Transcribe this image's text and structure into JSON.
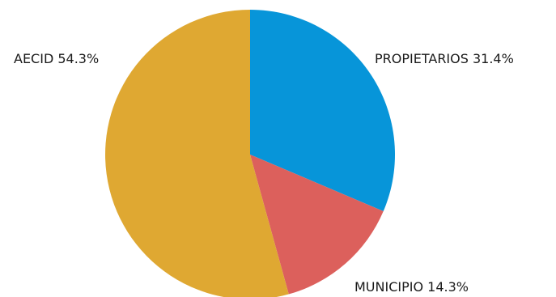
{
  "chart_data": {
    "type": "pie",
    "slices": [
      {
        "label": "PROPIETARIOS",
        "value": 31.4,
        "display": "PROPIETARIOS 31.4%",
        "color": "#0795d9"
      },
      {
        "label": "MUNICIPIO",
        "value": 14.3,
        "display": "MUNICIPIO 14.3%",
        "color": "#dc605c"
      },
      {
        "label": "AECID",
        "value": 54.3,
        "display": "AECID 54.3%",
        "color": "#dfa832"
      }
    ],
    "start_angle": "12 o'clock",
    "direction": "clockwise"
  }
}
